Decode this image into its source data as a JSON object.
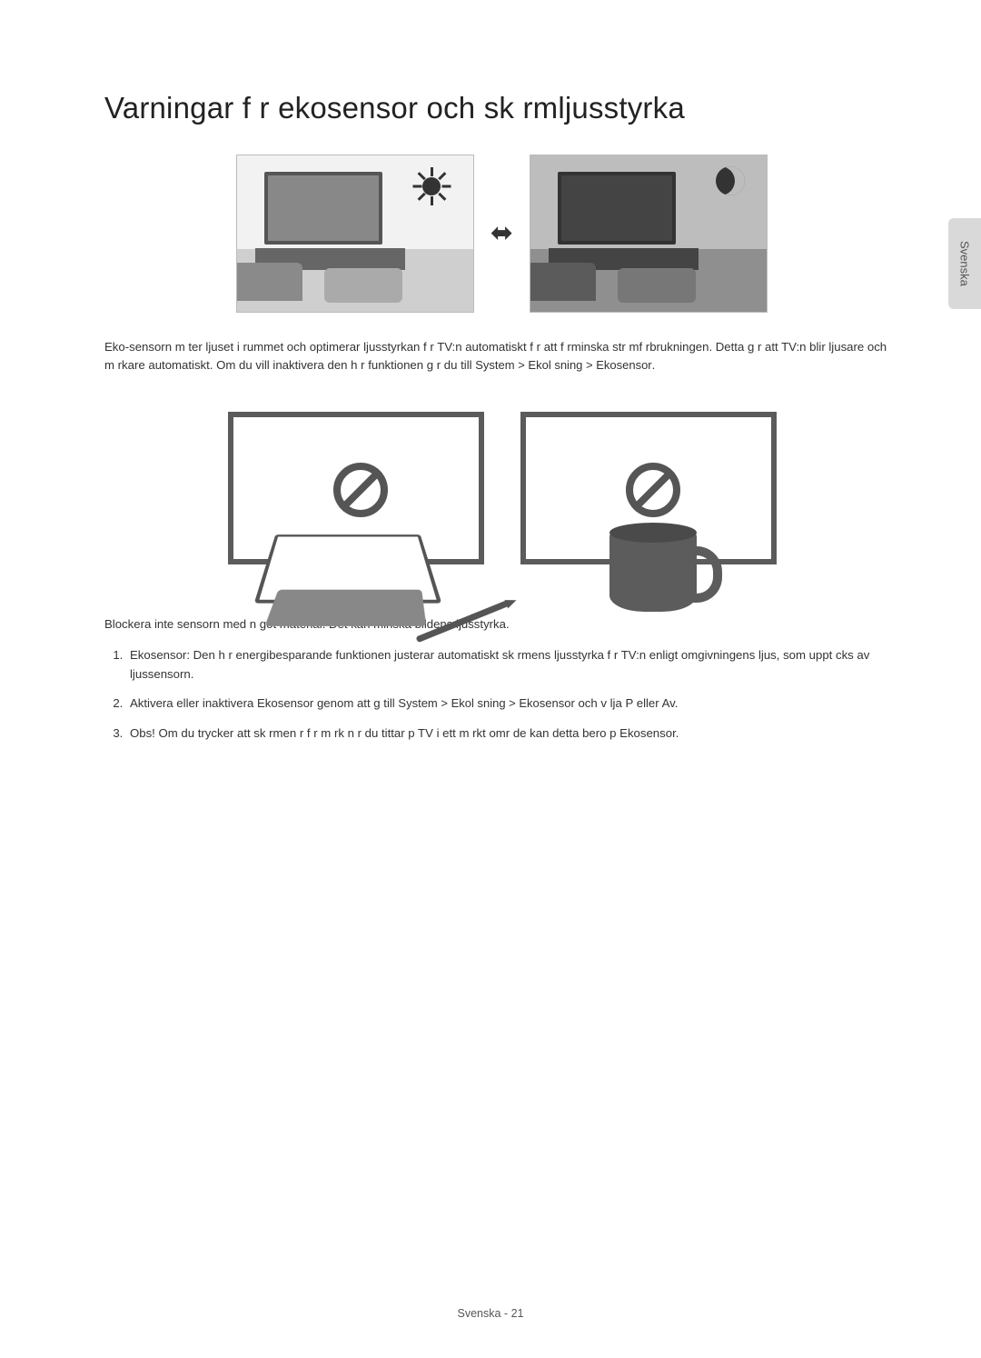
{
  "sideTab": "Svenska",
  "title": "Varningar f r ekosensor och sk rmljusstyrka",
  "arrowGlyph": "⬌",
  "intro": {
    "text1": "Eko-sensorn m ter ljuset i rummet och optimerar ljusstyrkan f r TV:n automatiskt f r att f rminska str mf rbrukningen. Detta g r att TV:n blir ljusare och m rkare automatiskt. Om du vill inaktivera den h r funktionen g r du till",
    "path": "System > Ekol sning  > Ekosensor",
    "end": "."
  },
  "blockWarn": "Blockera inte sensorn med n got material. Det kan minska bildens ljusstyrka.",
  "steps": {
    "s1a": "Ekosensor",
    "s1b": ": Den h r energibesparande funktionen justerar automatiskt sk rmens ljusstyrka f r TV:n enligt omgivningens ljus, som uppt cks av ljussensorn.",
    "s2a": "Aktivera eller inaktivera",
    "s2b": "Ekosensor",
    "s2c": " genom att g  till ",
    "s2d": "System > Ekol sning  > Ekosensor",
    "s2e": " och v lja ",
    "s2f": "P ",
    "s2g": " eller ",
    "s2h": "Av",
    "s2i": ".",
    "s3a": "Obs! Om du trycker att sk rmen  r f r m rk n r du tittar p  TV i ett m rkt omr de kan detta bero p      ",
    "s3b": "Ekosensor",
    "s3c": "."
  },
  "footer": "Svenska - 21"
}
